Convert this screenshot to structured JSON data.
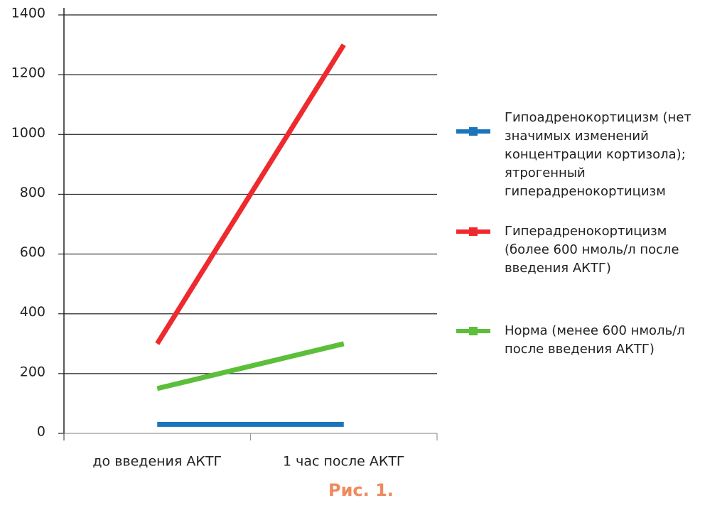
{
  "chart_data": {
    "type": "line",
    "categories": [
      "до введения АКТГ",
      "1 час после АКТГ"
    ],
    "series": [
      {
        "name": "Гипоадренокортицизм (нет значимых изменений концентрации кортизола); ятрогенный гиперадренокортицизм",
        "color": "#1a75bb",
        "values": [
          30,
          30
        ]
      },
      {
        "name": "Гиперадренокортицизм (более 600 нмоль/л после введения АКТГ)",
        "color": "#ee2a2e",
        "values": [
          300,
          1300
        ]
      },
      {
        "name": "Норма (менее 600 нмоль/л после введения АКТГ)",
        "color": "#5cbf3a",
        "values": [
          150,
          300
        ]
      }
    ],
    "ylim": [
      0,
      1400
    ],
    "yticks": [
      0,
      200,
      400,
      600,
      800,
      1000,
      1200,
      1400
    ],
    "grid": true,
    "legend": "right",
    "caption": "Рис. 1."
  }
}
